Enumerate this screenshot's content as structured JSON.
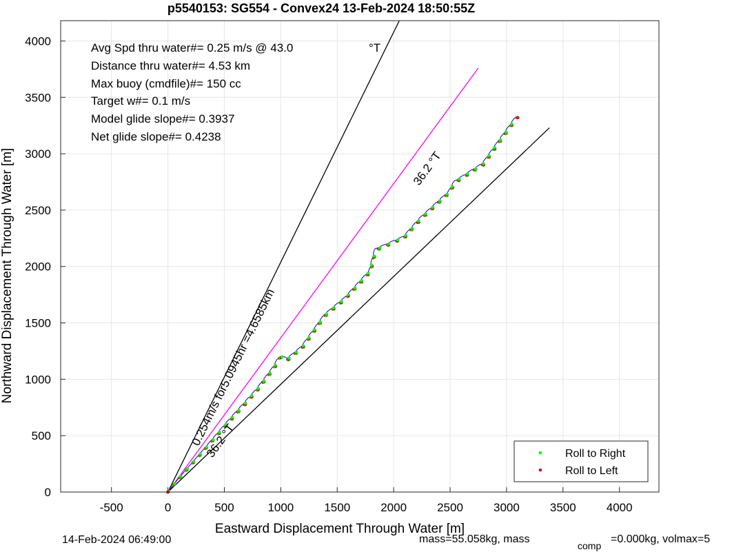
{
  "chart_data": {
    "type": "line",
    "title": "p5540153: SG554 - Convex24 13-Feb-2024 18:50:55Z",
    "xlabel": "Eastward Displacement Through Water [m]",
    "ylabel": "Northward Displacement Through Water [m]",
    "xlim": [
      -950,
      4350
    ],
    "ylim": [
      0,
      4180
    ],
    "xticks": [
      -500,
      0,
      500,
      1000,
      1500,
      2000,
      2500,
      3000,
      3500,
      4000
    ],
    "yticks": [
      0,
      500,
      1000,
      1500,
      2000,
      2500,
      3000,
      3500,
      4000
    ],
    "grid": true,
    "legend_position": "bottom-right",
    "legend": [
      {
        "label": "Roll to Right",
        "color": "#00ff00"
      },
      {
        "label": "Roll to Left",
        "color": "#e0001a"
      }
    ],
    "stats_lines": [
      "Avg Spd thru water#=  0.25 m/s @  43.0",
      "Distance thru water#=  4.53 km",
      "Max buoy (cmdfile)#= 150 cc",
      "Target w#= 0.1 m/s",
      "Model glide slope#= 0.3937",
      "Net glide slope#= 0.4238"
    ],
    "stats_unit": "°T",
    "line_labels": {
      "magenta_heading": "36.2 °T",
      "summary": "0.254m/s for5.0945hr =4.6585km",
      "lower_heading": "36.2 °T"
    },
    "reference_lines": [
      {
        "name": "bound-upper",
        "color": "#000000",
        "points": [
          [
            0,
            0
          ],
          [
            2050,
            4180
          ]
        ]
      },
      {
        "name": "bound-lower",
        "color": "#000000",
        "points": [
          [
            0,
            0
          ],
          [
            3380,
            3230
          ]
        ]
      },
      {
        "name": "heading-line",
        "color": "#ff00ff",
        "points": [
          [
            0,
            0
          ],
          [
            2750,
            3760
          ]
        ]
      }
    ],
    "track": {
      "color": "#0000ff",
      "start": [
        0,
        0
      ],
      "end": [
        3100,
        3320
      ],
      "waypoints": [
        [
          0,
          0
        ],
        [
          100,
          120
        ],
        [
          300,
          340
        ],
        [
          550,
          620
        ],
        [
          800,
          900
        ],
        [
          950,
          1100
        ],
        [
          1000,
          1190
        ],
        [
          1060,
          1160
        ],
        [
          1200,
          1280
        ],
        [
          1400,
          1560
        ],
        [
          1580,
          1710
        ],
        [
          1800,
          1950
        ],
        [
          1850,
          2140
        ],
        [
          2100,
          2250
        ],
        [
          2250,
          2420
        ],
        [
          2500,
          2650
        ],
        [
          2550,
          2740
        ],
        [
          2800,
          2900
        ],
        [
          3000,
          3180
        ],
        [
          3100,
          3320
        ]
      ],
      "wave_amplitude": 38,
      "segments": 54
    }
  },
  "footer": {
    "timestamp": "14-Feb-2024 06:49:00",
    "mass_text": "mass=55.058kg, mass",
    "mass_subscript": "comp",
    "mass_rest": "=0.000kg, volmax=5"
  }
}
